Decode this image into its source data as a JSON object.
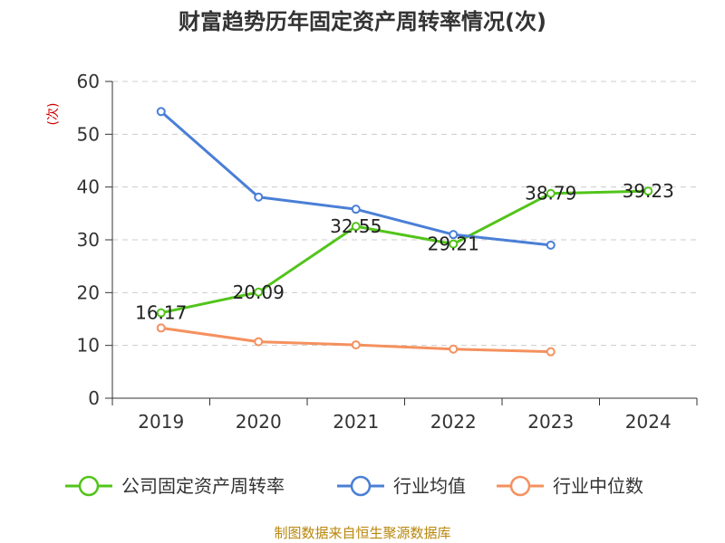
{
  "chart_data": {
    "type": "line",
    "title": "财富趋势历年固定资产周转率情况(次)",
    "ylabel": "(次)",
    "xlabel": "",
    "ylim": [
      0,
      60
    ],
    "yticks": [
      0,
      10,
      20,
      30,
      40,
      50,
      60
    ],
    "grid": true,
    "legend_position": "bottom",
    "categories": [
      "2019",
      "2020",
      "2021",
      "2022",
      "2023",
      "2024"
    ],
    "series": [
      {
        "name": "公司固定资产周转率",
        "color": "#52c41a",
        "values": [
          16.17,
          20.09,
          32.55,
          29.21,
          38.79,
          39.23
        ],
        "labels": [
          "16.17",
          "20.09",
          "32.55",
          "29.21",
          "38.79",
          "39.23"
        ]
      },
      {
        "name": "行业均值",
        "color": "#4a7fd6",
        "values": [
          54.3,
          38.1,
          35.8,
          31.0,
          29.0,
          null
        ],
        "labels": []
      },
      {
        "name": "行业中位数",
        "color": "#f4915e",
        "values": [
          13.3,
          10.7,
          10.1,
          9.3,
          8.8,
          null
        ],
        "labels": []
      }
    ],
    "source": "制图数据来自恒生聚源数据库"
  }
}
